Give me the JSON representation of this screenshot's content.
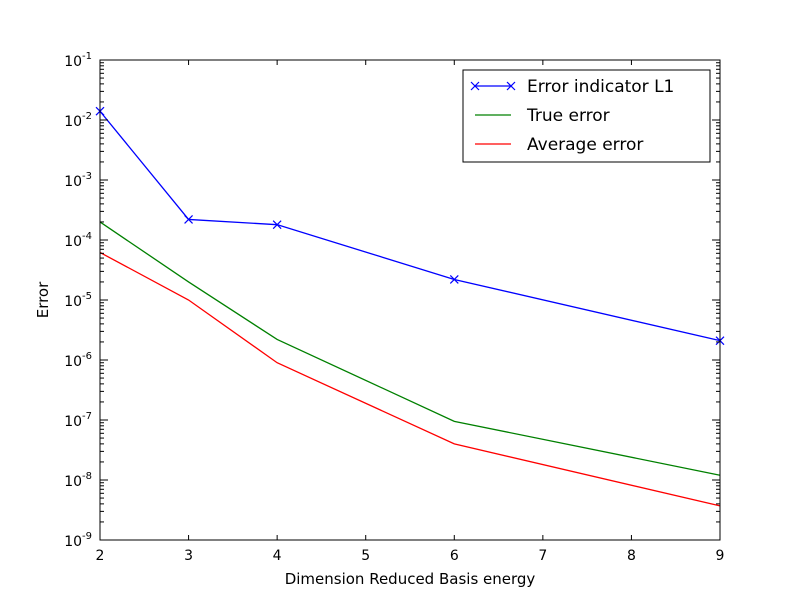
{
  "chart_data": {
    "type": "line",
    "xlabel": "Dimension Reduced Basis energy",
    "ylabel": "Error",
    "xlim": [
      2,
      9
    ],
    "ylim": [
      1e-09,
      0.1
    ],
    "yscale": "log",
    "x_ticks": [
      2,
      3,
      4,
      5,
      6,
      7,
      8,
      9
    ],
    "y_tick_exponents": [
      -1,
      -2,
      -3,
      -4,
      -5,
      -6,
      -7,
      -8,
      -9
    ],
    "grid": false,
    "legend_position": "top-right",
    "series": [
      {
        "name": "Error indicator L1",
        "color": "#0000ff",
        "marker": "x",
        "x": [
          2,
          3,
          4,
          6,
          9
        ],
        "y": [
          0.014,
          0.00022,
          0.00018,
          2.2e-05,
          2.1e-06
        ]
      },
      {
        "name": "True error",
        "color": "#008000",
        "marker": "none",
        "x": [
          2,
          3,
          4,
          6,
          9
        ],
        "y": [
          0.0002,
          2e-05,
          2.2e-06,
          9.5e-08,
          1.2e-08
        ]
      },
      {
        "name": "Average error",
        "color": "#ff0000",
        "marker": "none",
        "x": [
          2,
          3,
          4,
          6,
          9
        ],
        "y": [
          6.2e-05,
          1e-05,
          9e-07,
          4e-08,
          3.7e-09
        ]
      }
    ]
  }
}
